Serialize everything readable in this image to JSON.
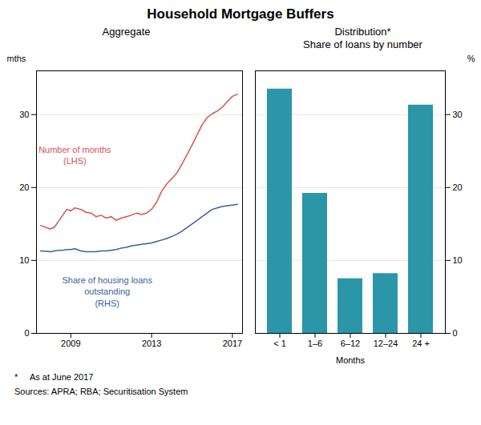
{
  "title": "Household Mortgage Buffers",
  "footnotes": [
    "*     As at June 2017",
    "Sources: APRA; RBA; Securitisation System"
  ],
  "chart_data": [
    {
      "type": "line",
      "title": "Aggregate",
      "ylabel": "mths",
      "x": [
        2007.5,
        2008.0,
        2008.2,
        2008.4,
        2008.6,
        2008.8,
        2009.0,
        2009.2,
        2009.5,
        2009.75,
        2010.0,
        2010.25,
        2010.5,
        2010.75,
        2011.0,
        2011.25,
        2011.5,
        2011.75,
        2012.0,
        2012.25,
        2012.5,
        2012.75,
        2013.0,
        2013.25,
        2013.5,
        2013.75,
        2014.0,
        2014.25,
        2014.5,
        2014.75,
        2015.0,
        2015.25,
        2015.5,
        2015.75,
        2016.0,
        2016.25,
        2016.5,
        2016.75,
        2017.0,
        2017.25
      ],
      "series": [
        {
          "name": "Number of months\n(LHS)",
          "color": "#d9534f",
          "values": [
            14.8,
            14.3,
            14.6,
            15.4,
            16.2,
            17.0,
            16.8,
            17.2,
            17.0,
            16.6,
            16.5,
            16.0,
            16.2,
            15.8,
            16.0,
            15.5,
            15.8,
            16.0,
            16.2,
            16.5,
            16.3,
            16.5,
            17.0,
            18.0,
            19.5,
            20.5,
            21.2,
            22.0,
            23.2,
            24.5,
            25.8,
            27.2,
            28.6,
            29.6,
            30.1,
            30.5,
            31.0,
            31.8,
            32.5,
            32.8
          ]
        },
        {
          "name": "Share of housing loans\noutstanding\n(RHS)",
          "color": "#3a5fa0",
          "values": [
            11.3,
            11.2,
            11.3,
            11.4,
            11.4,
            11.5,
            11.5,
            11.6,
            11.3,
            11.2,
            11.2,
            11.2,
            11.3,
            11.3,
            11.4,
            11.5,
            11.7,
            11.8,
            12.0,
            12.1,
            12.2,
            12.3,
            12.4,
            12.6,
            12.8,
            13.0,
            13.3,
            13.6,
            14.0,
            14.5,
            15.0,
            15.5,
            16.0,
            16.5,
            17.0,
            17.2,
            17.4,
            17.5,
            17.6,
            17.7
          ]
        }
      ],
      "annotations": [
        {
          "text": "Number of months\n(LHS)",
          "x": 2009.2,
          "y": 24.5,
          "color": "#d9534f"
        },
        {
          "text": "Share of housing loans\noutstanding\n(RHS)",
          "x": 2010.8,
          "y": 5.8,
          "color": "#3a5fa0"
        }
      ],
      "xlim": [
        2007.3,
        2017.5
      ],
      "xticks": [
        2009,
        2013,
        2017
      ],
      "ylim": [
        0,
        36
      ],
      "yticks": [
        0,
        10,
        20,
        30
      ],
      "grid": true
    },
    {
      "type": "bar",
      "title": "Distribution*\nShare of loans by number",
      "xlabel": "Months",
      "ylabel": "%",
      "categories": [
        "< 1",
        "1–6",
        "6–12",
        "12–24",
        "24 +"
      ],
      "values": [
        33.5,
        19.2,
        7.5,
        8.2,
        31.3
      ],
      "color": "#2b96a8",
      "ylim": [
        0,
        36
      ],
      "yticks": [
        0,
        10,
        20,
        30
      ],
      "grid": true
    }
  ]
}
